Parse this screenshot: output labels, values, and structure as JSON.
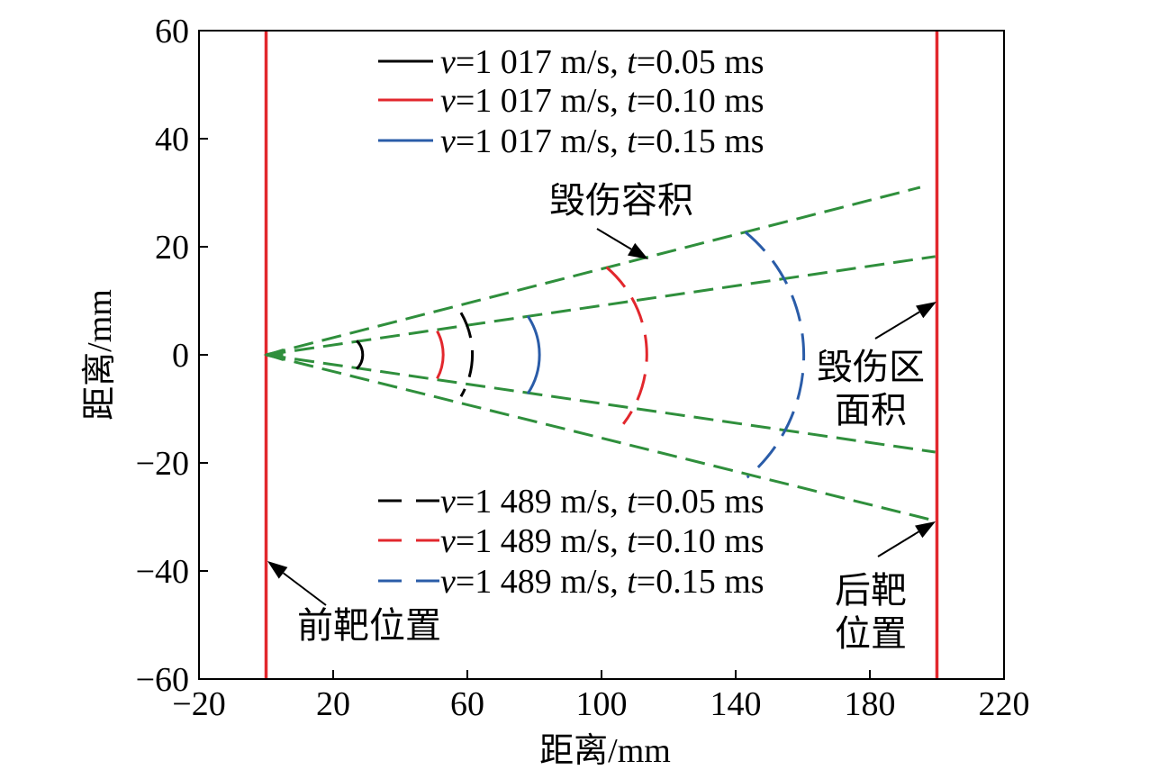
{
  "chart_data": {
    "type": "line",
    "xlabel": "距离/mm",
    "ylabel": "距离/mm",
    "xlim": [
      -20,
      220
    ],
    "ylim": [
      -60,
      60
    ],
    "xticks": [
      -20,
      20,
      60,
      100,
      140,
      180,
      220
    ],
    "xtick_labels": [
      "−20",
      "20",
      "60",
      "100",
      "140",
      "180",
      "220"
    ],
    "yticks": [
      60,
      40,
      20,
      0,
      -20,
      -40,
      -60
    ],
    "ytick_labels": [
      "60",
      "40",
      "20",
      "0",
      "−20",
      "−40",
      "−60"
    ],
    "grid": false,
    "target_lines": [
      {
        "x": 0,
        "color": "#e2272d"
      },
      {
        "x": 200,
        "color": "#e2272d"
      }
    ],
    "damage_boundaries": {
      "color": "#2f8f3c",
      "style": "dashed",
      "lines": [
        [
          [
            0,
            0
          ],
          [
            195,
            31
          ]
        ],
        [
          [
            0,
            0
          ],
          [
            199.5,
            18.2
          ]
        ],
        [
          [
            0,
            0
          ],
          [
            199.5,
            -18
          ]
        ],
        [
          [
            0,
            0
          ],
          [
            200,
            -30.8
          ]
        ]
      ]
    },
    "series": [
      {
        "name": "v=1 017 m/s, t=0.05 ms",
        "color": "#000000",
        "style": "solid",
        "points": [
          [
            27.0,
            2.6
          ],
          [
            28.8,
            0
          ],
          [
            27.0,
            -2.6
          ]
        ]
      },
      {
        "name": "v=1 017 m/s, t=0.10 ms",
        "color": "#e2272d",
        "style": "solid",
        "points": [
          [
            51.0,
            4.4
          ],
          [
            52.8,
            0
          ],
          [
            51.0,
            -4.4
          ]
        ]
      },
      {
        "name": "v=1 017 m/s, t=0.15 ms",
        "color": "#2a5ca8",
        "style": "solid",
        "points": [
          [
            78.0,
            7.2
          ],
          [
            81.5,
            0
          ],
          [
            78.0,
            -7.2
          ]
        ]
      },
      {
        "name": "v=1 489 m/s, t=0.05 ms",
        "color": "#000000",
        "style": "dashed",
        "points": [
          [
            58.1,
            7.8
          ],
          [
            61.5,
            0
          ],
          [
            58.1,
            -7.7
          ]
        ]
      },
      {
        "name": "v=1 489 m/s, t=0.10 ms",
        "color": "#e2272d",
        "style": "dashed",
        "points": [
          [
            101.5,
            16.2
          ],
          [
            113.5,
            0
          ],
          [
            106.5,
            -12.8
          ]
        ]
      },
      {
        "name": "v=1 489 m/s, t=0.15 ms",
        "color": "#2a5ca8",
        "style": "dashed",
        "points": [
          [
            142.9,
            22.7
          ],
          [
            160.3,
            0
          ],
          [
            143.4,
            -22.7
          ]
        ]
      }
    ],
    "legends": [
      {
        "placement": "top-center",
        "series": [
          0,
          1,
          2
        ]
      },
      {
        "placement": "bottom-center",
        "series": [
          3,
          4,
          5
        ]
      }
    ],
    "annotations": [
      {
        "lines": [
          "毁伤容积"
        ]
      },
      {
        "lines": [
          "毁伤区",
          "面积"
        ]
      },
      {
        "lines": [
          "后靶",
          "位置"
        ]
      },
      {
        "lines": [
          "前靶位置"
        ]
      }
    ]
  }
}
